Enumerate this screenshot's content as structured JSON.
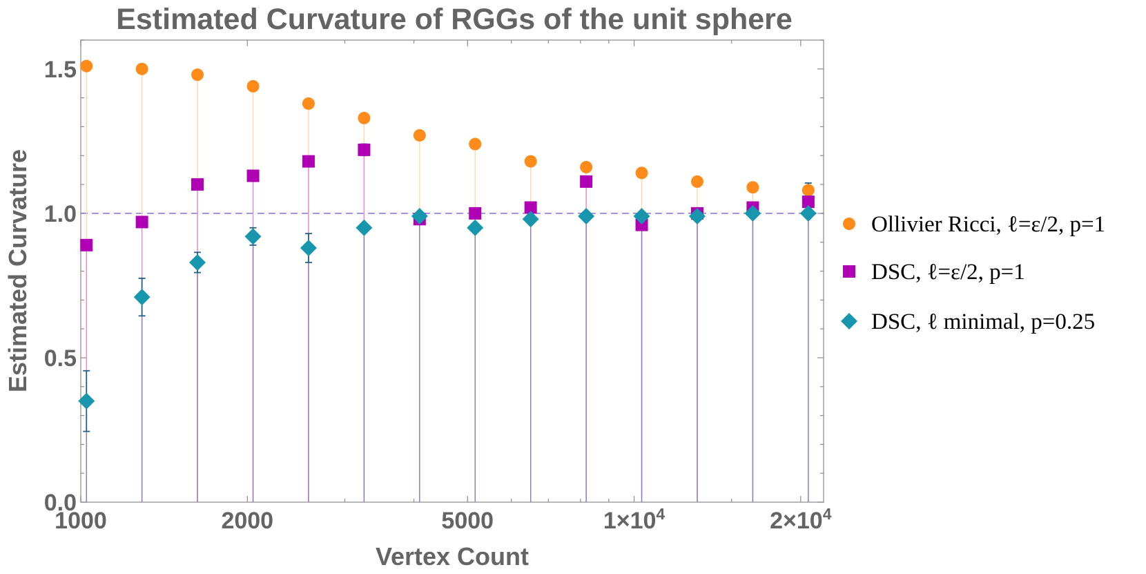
{
  "chart_data": {
    "type": "scatter",
    "title": "Estimated Curvature of RGGs of the unit sphere",
    "xlabel": "Vertex Count",
    "ylabel": "Estimated Curvature",
    "xscale": "log",
    "xlim": [
      1000,
      22000
    ],
    "ylim": [
      0.0,
      1.6
    ],
    "reference_line": {
      "y": 1.0,
      "style": "dashed",
      "color": "#6a5acd"
    },
    "x_ticks": [
      {
        "value": 1000,
        "label": "1000"
      },
      {
        "value": 2000,
        "label": "2000"
      },
      {
        "value": 5000,
        "label": "5000"
      },
      {
        "value": 10000,
        "label": "1×10",
        "exp": "4"
      },
      {
        "value": 20000,
        "label": "2×10",
        "exp": "4"
      }
    ],
    "y_ticks": [
      {
        "value": 0.0,
        "label": "0.0"
      },
      {
        "value": 0.5,
        "label": "0.5"
      },
      {
        "value": 1.0,
        "label": "1.0"
      },
      {
        "value": 1.5,
        "label": "1.5"
      }
    ],
    "x": [
      1024,
      1290,
      1625,
      2048,
      2580,
      3251,
      4096,
      5160,
      6502,
      8192,
      10321,
      13004,
      16384,
      20643
    ],
    "series": [
      {
        "name": "Ollivier Ricci",
        "legend_label": "Ollivier Ricci, ℓ=ε/2, p=1",
        "marker": "circle",
        "color": "#ff8c1a",
        "stem_color": "#ffd9a6",
        "values": [
          1.51,
          1.5,
          1.48,
          1.44,
          1.38,
          1.33,
          1.27,
          1.24,
          1.18,
          1.16,
          1.14,
          1.11,
          1.09,
          1.08
        ],
        "errors": [
          0.008,
          0.008,
          0.008,
          0.008,
          0.008,
          0.008,
          0.008,
          0.008,
          0.008,
          0.008,
          0.01,
          0.01,
          0.015,
          0.025
        ]
      },
      {
        "name": "DSC",
        "legend_label": "DSC, ℓ=ε/2, p=1",
        "marker": "square",
        "color": "#b000b4",
        "stem_color": "#e58ad0",
        "values": [
          0.89,
          0.97,
          1.1,
          1.13,
          1.18,
          1.22,
          0.98,
          1.0,
          1.02,
          1.11,
          0.96,
          1.0,
          1.02,
          1.04
        ],
        "errors": [
          0.01,
          0.01,
          0.01,
          0.01,
          0.01,
          0.02,
          0.01,
          0.01,
          0.01,
          0.01,
          0.01,
          0.01,
          0.01,
          0.01
        ]
      },
      {
        "name": "DSC minimal",
        "legend_label": "DSC, ℓ minimal, p=0.25",
        "marker": "diamond",
        "color": "#1796ad",
        "stem_color": "#8a7fb5",
        "values": [
          0.35,
          0.71,
          0.83,
          0.92,
          0.88,
          0.95,
          0.99,
          0.95,
          0.98,
          0.99,
          0.99,
          0.99,
          1.0,
          1.0
        ],
        "errors": [
          0.105,
          0.065,
          0.035,
          0.03,
          0.05,
          0.01,
          0.01,
          0.01,
          0.01,
          0.01,
          0.01,
          0.01,
          0.01,
          0.01
        ]
      }
    ],
    "legend_position": "right"
  }
}
